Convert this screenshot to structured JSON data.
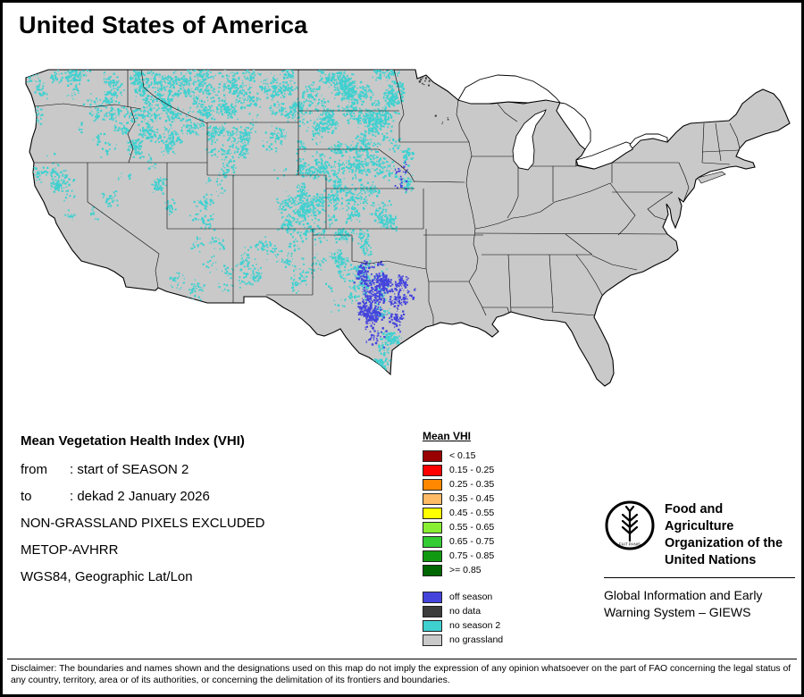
{
  "title": "United States of America",
  "info": {
    "heading": "Mean Vegetation Health Index (VHI)",
    "from_label": "from",
    "from_value": ": start of SEASON 2",
    "to_label": "to",
    "to_value": ": dekad 2 January 2026",
    "exclusion_note": "NON-GRASSLAND PIXELS EXCLUDED",
    "sensor": "METOP-AVHRR",
    "projection": "WGS84, Geographic Lat/Lon"
  },
  "legend": {
    "title": "Mean VHI",
    "classes": [
      {
        "label": "< 0.15",
        "color": "#990000"
      },
      {
        "label": "0.15 - 0.25",
        "color": "#ff0000"
      },
      {
        "label": "0.25 - 0.35",
        "color": "#ff8800"
      },
      {
        "label": "0.35 - 0.45",
        "color": "#ffbb66"
      },
      {
        "label": "0.45 - 0.55",
        "color": "#ffff00"
      },
      {
        "label": "0.55 - 0.65",
        "color": "#88ee33"
      },
      {
        "label": "0.65 - 0.75",
        "color": "#33cc33"
      },
      {
        "label": "0.75 - 0.85",
        "color": "#119911"
      },
      {
        "label": ">= 0.85",
        "color": "#006600"
      }
    ],
    "status_classes": [
      {
        "label": "off season",
        "color": "#4444dd"
      },
      {
        "label": "no data",
        "color": "#3c3c3c"
      },
      {
        "label": "no season 2",
        "color": "#3fd0d0"
      },
      {
        "label": "no grassland",
        "color": "#c9c9c9"
      }
    ]
  },
  "map": {
    "water_color": "#ffffff",
    "boundary_color": "#000000"
  },
  "branding": {
    "org_line1": "Food and Agriculture",
    "org_line2": "Organization of the",
    "org_line3": "United Nations",
    "logo_motto": "FIAT PANIS",
    "giews_line1": "Global Information and Early",
    "giews_line2": "Warning System – GIEWS"
  },
  "disclaimer": "Disclaimer: The boundaries and names shown and the designations used on this map do not imply the expression of any opinion whatsoever on the part of FAO concerning the legal status of any country, territory, area or of its authorities, or concerning the delimitation of its frontiers and boundaries."
}
